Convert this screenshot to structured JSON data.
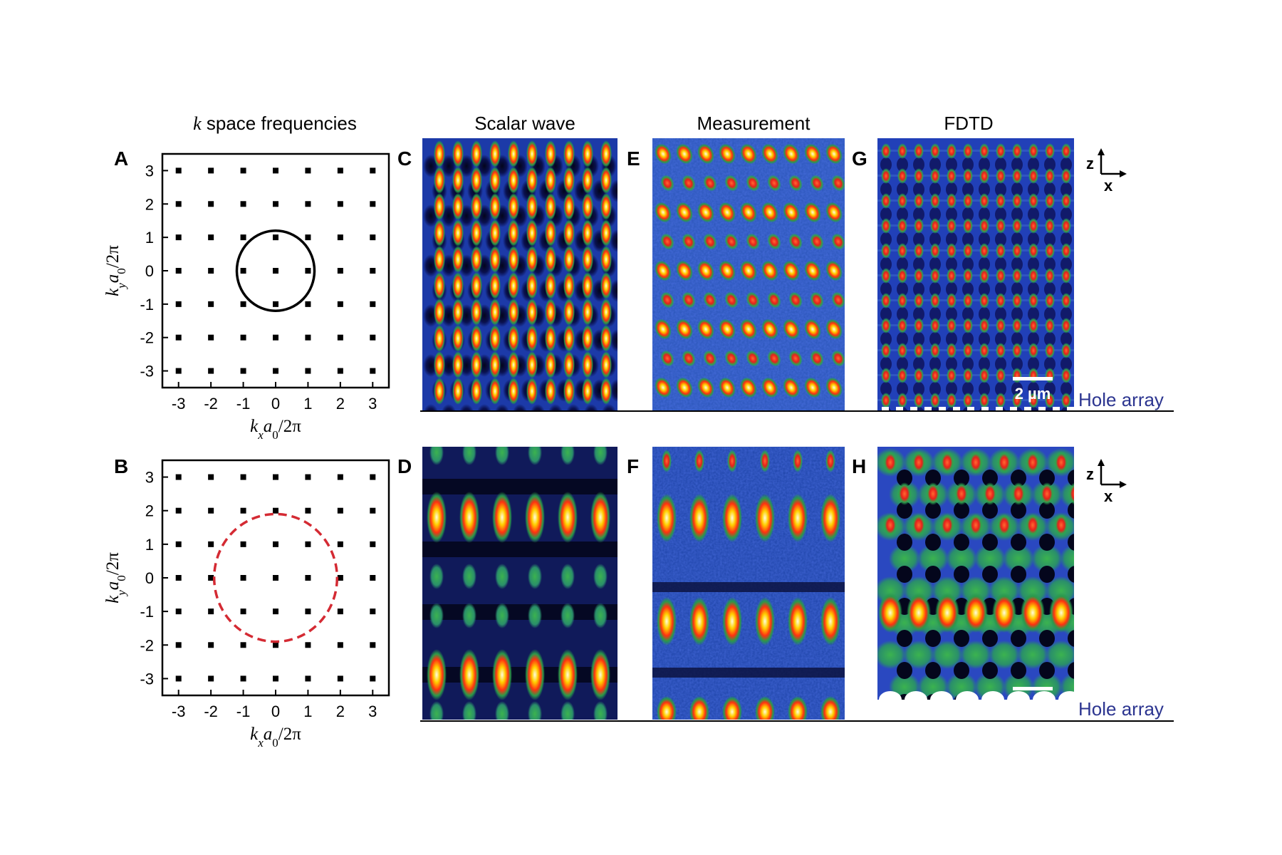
{
  "column_titles": {
    "k_space": {
      "k": "k",
      "rest": " space frequencies"
    },
    "scalar": "Scalar wave",
    "measurement": "Measurement",
    "fdtd": "FDTD"
  },
  "panel_labels": {
    "A": "A",
    "B": "B",
    "C": "C",
    "D": "D",
    "E": "E",
    "F": "F",
    "G": "G",
    "H": "H"
  },
  "axes": {
    "ticks": [
      "-3",
      "-2",
      "-1",
      "0",
      "1",
      "2",
      "3"
    ],
    "xlabel": {
      "k": "k",
      "sub": "x",
      "a": "a",
      "a_sub": "0",
      "tail": "/2π"
    },
    "ylabel": {
      "k": "k",
      "sub": "y",
      "a": "a",
      "a_sub": "0",
      "tail": "/2π"
    }
  },
  "chart_data": [
    {
      "type": "scatter",
      "panel": "A",
      "lattice_points": {
        "x": [
          -3,
          -2,
          -1,
          0,
          1,
          2,
          3
        ],
        "y": [
          -3,
          -2,
          -1,
          0,
          1,
          2,
          3
        ]
      },
      "circle": {
        "center": [
          0,
          0
        ],
        "radius": 1.2,
        "style": "solid",
        "color": "#000000"
      },
      "xlim": [
        -3.5,
        3.5
      ],
      "ylim": [
        -3.5,
        3.5
      ]
    },
    {
      "type": "scatter",
      "panel": "B",
      "lattice_points": {
        "x": [
          -3,
          -2,
          -1,
          0,
          1,
          2,
          3
        ],
        "y": [
          -3,
          -2,
          -1,
          0,
          1,
          2,
          3
        ]
      },
      "circle": {
        "center": [
          0,
          0
        ],
        "radius": 1.9,
        "style": "dashed",
        "color": "#d42a33"
      },
      "xlim": [
        -3.5,
        3.5
      ],
      "ylim": [
        -3.5,
        3.5
      ]
    }
  ],
  "colors": {
    "ink": "#000000",
    "dashed_circle": "#d42a33",
    "hole_array_text": "#2c3590",
    "map_bg": "#1f3fb0",
    "map_dark": "#070b30"
  },
  "scale_bar": {
    "label": "2 µm"
  },
  "hole_array_label": "Hole array",
  "axes_indicator": {
    "z": "z",
    "x": "x"
  }
}
